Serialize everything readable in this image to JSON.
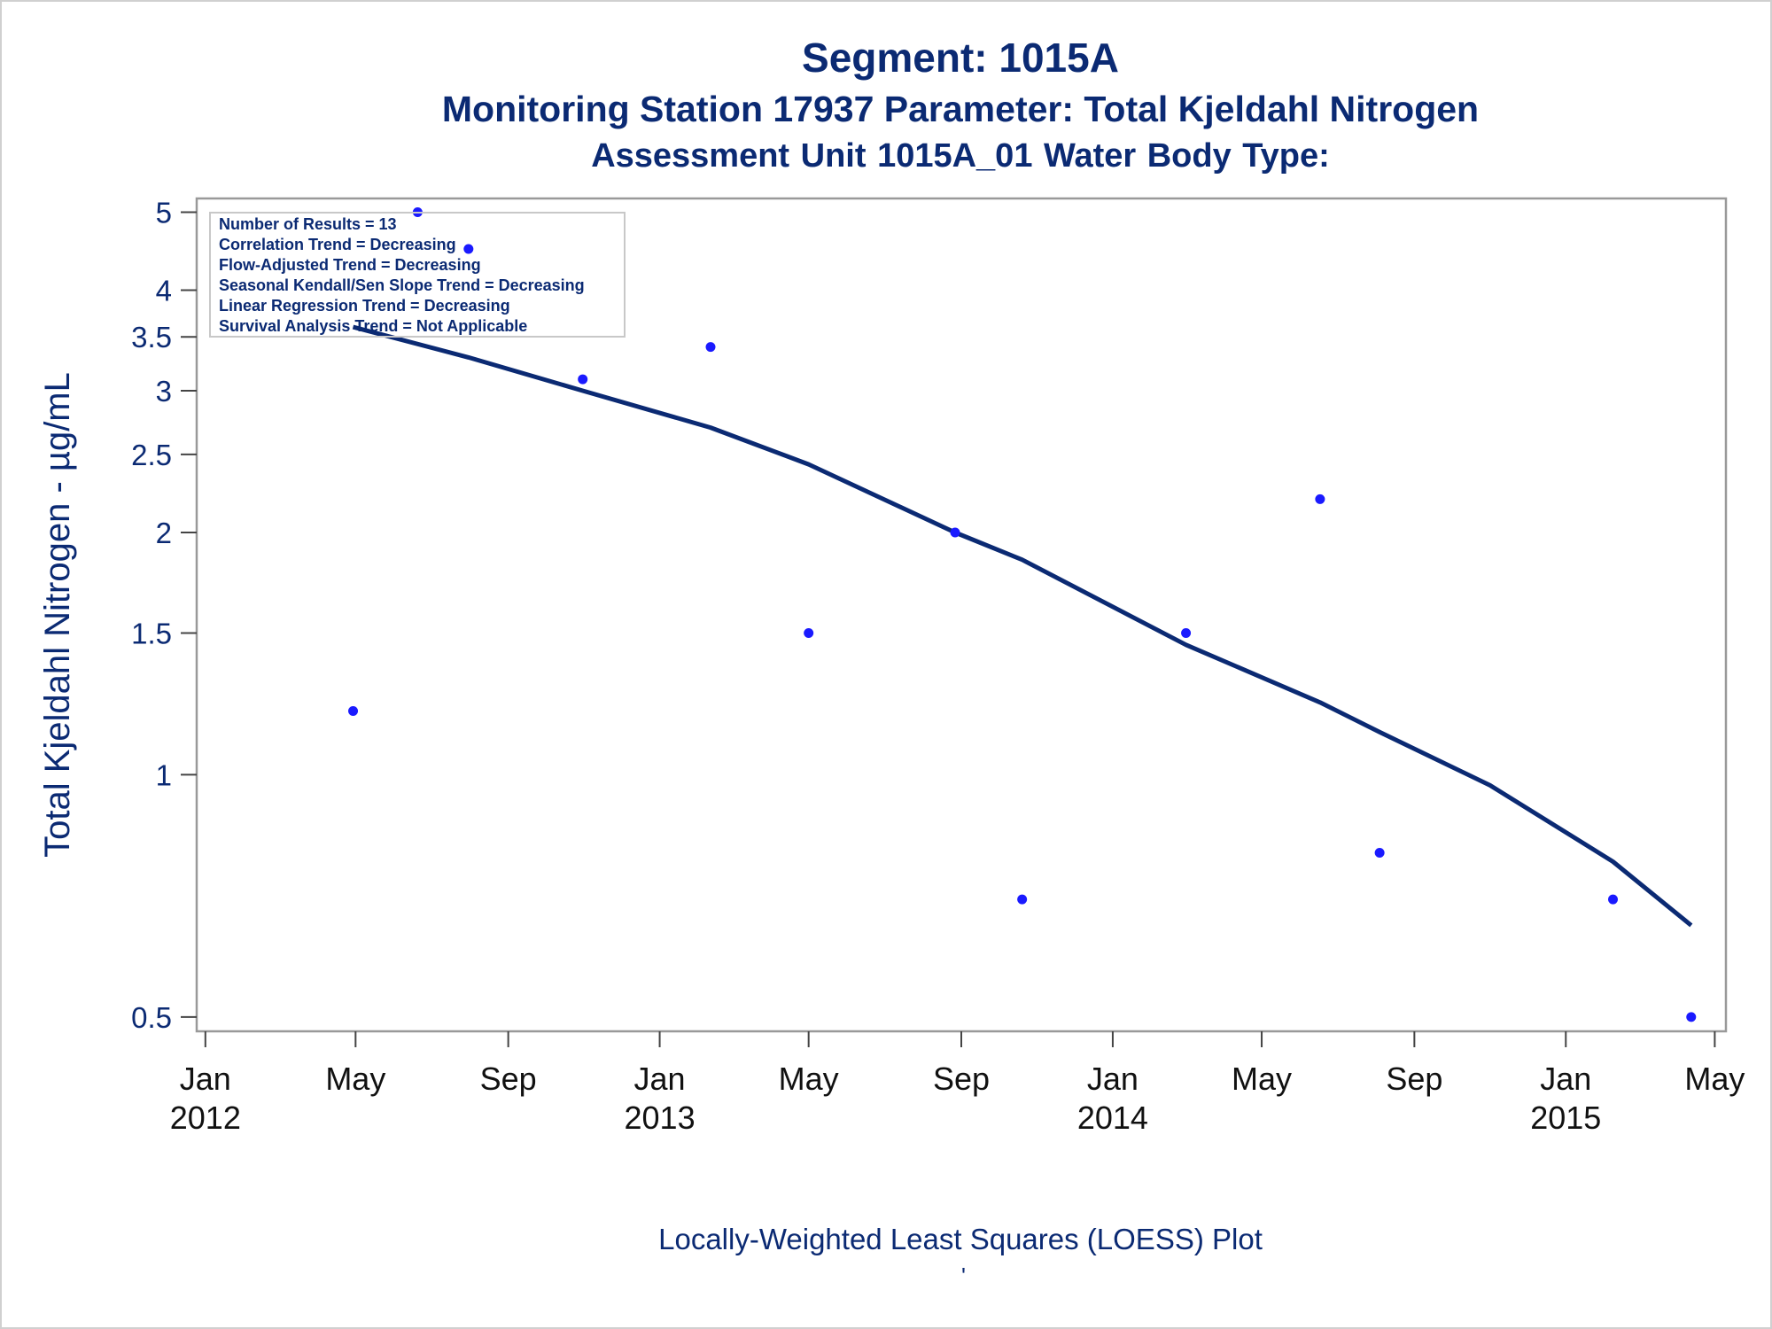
{
  "title": "Segment: 1015A",
  "subtitle": "Monitoring Station 17937 Parameter: Total Kjeldahl Nitrogen",
  "subtitle2": "Assessment Unit 1015A_01   Water Body Type:",
  "footer": "Locally-Weighted Least Squares (LOESS) Plot",
  "footer_mark": "'",
  "colors": {
    "text": "#0b2a73",
    "marker": "#1a1aff",
    "line": "#0b2a73",
    "axis": "#999999"
  },
  "chart_data": {
    "type": "scatter",
    "title": "Segment: 1015A",
    "ylabel": "Total Kjeldahl Nitrogen -  µg/mL",
    "xlabel": "",
    "y_scale": "log",
    "ylim": [
      0.48,
      5.2
    ],
    "xlim": [
      "2011-12-25",
      "2015-05-10"
    ],
    "yticks": [
      0.5,
      1,
      1.5,
      2,
      2.5,
      3,
      3.5,
      4,
      5
    ],
    "ytick_labels": [
      "0.5",
      "1",
      "1.5",
      "2",
      "2.5",
      "3",
      "3.5",
      "4",
      "5"
    ],
    "xticks": [
      {
        "date": "2012-01-01",
        "label": "Jan",
        "year": "2012"
      },
      {
        "date": "2012-05-01",
        "label": "May",
        "year": ""
      },
      {
        "date": "2012-09-01",
        "label": "Sep",
        "year": ""
      },
      {
        "date": "2013-01-01",
        "label": "Jan",
        "year": "2013"
      },
      {
        "date": "2013-05-01",
        "label": "May",
        "year": ""
      },
      {
        "date": "2013-09-01",
        "label": "Sep",
        "year": ""
      },
      {
        "date": "2014-01-01",
        "label": "Jan",
        "year": "2014"
      },
      {
        "date": "2014-05-01",
        "label": "May",
        "year": ""
      },
      {
        "date": "2014-09-01",
        "label": "Sep",
        "year": ""
      },
      {
        "date": "2015-01-01",
        "label": "Jan",
        "year": "2015"
      },
      {
        "date": "2015-05-01",
        "label": "May",
        "year": ""
      }
    ],
    "points": [
      {
        "x": "2012-04-29",
        "y": 1.2
      },
      {
        "x": "2012-06-20",
        "y": 5.0
      },
      {
        "x": "2012-07-31",
        "y": 4.5
      },
      {
        "x": "2012-10-31",
        "y": 3.1
      },
      {
        "x": "2013-02-11",
        "y": 3.4
      },
      {
        "x": "2013-05-01",
        "y": 1.5
      },
      {
        "x": "2013-08-27",
        "y": 2.0
      },
      {
        "x": "2013-10-20",
        "y": 0.7
      },
      {
        "x": "2014-03-01",
        "y": 1.5
      },
      {
        "x": "2014-06-17",
        "y": 2.2
      },
      {
        "x": "2014-08-04",
        "y": 0.8
      },
      {
        "x": "2015-02-08",
        "y": 0.7
      },
      {
        "x": "2015-04-12",
        "y": 0.5
      }
    ],
    "loess": [
      {
        "x": "2012-04-29",
        "y": 3.6
      },
      {
        "x": "2012-07-31",
        "y": 3.3
      },
      {
        "x": "2012-10-31",
        "y": 3.0
      },
      {
        "x": "2013-02-11",
        "y": 2.7
      },
      {
        "x": "2013-05-01",
        "y": 2.43
      },
      {
        "x": "2013-08-27",
        "y": 2.0
      },
      {
        "x": "2013-10-20",
        "y": 1.85
      },
      {
        "x": "2014-03-01",
        "y": 1.45
      },
      {
        "x": "2014-06-17",
        "y": 1.23
      },
      {
        "x": "2014-08-04",
        "y": 1.13
      },
      {
        "x": "2014-11-01",
        "y": 0.97
      },
      {
        "x": "2015-02-08",
        "y": 0.78
      },
      {
        "x": "2015-04-12",
        "y": 0.65
      }
    ],
    "legend_position": "top-left",
    "inset": [
      "Number of Results = 13",
      "Correlation Trend = Decreasing",
      "Flow-Adjusted Trend = Decreasing",
      "Seasonal Kendall/Sen Slope Trend = Decreasing",
      "Linear Regression Trend = Decreasing",
      "Survival Analysis Trend = Not Applicable"
    ]
  }
}
